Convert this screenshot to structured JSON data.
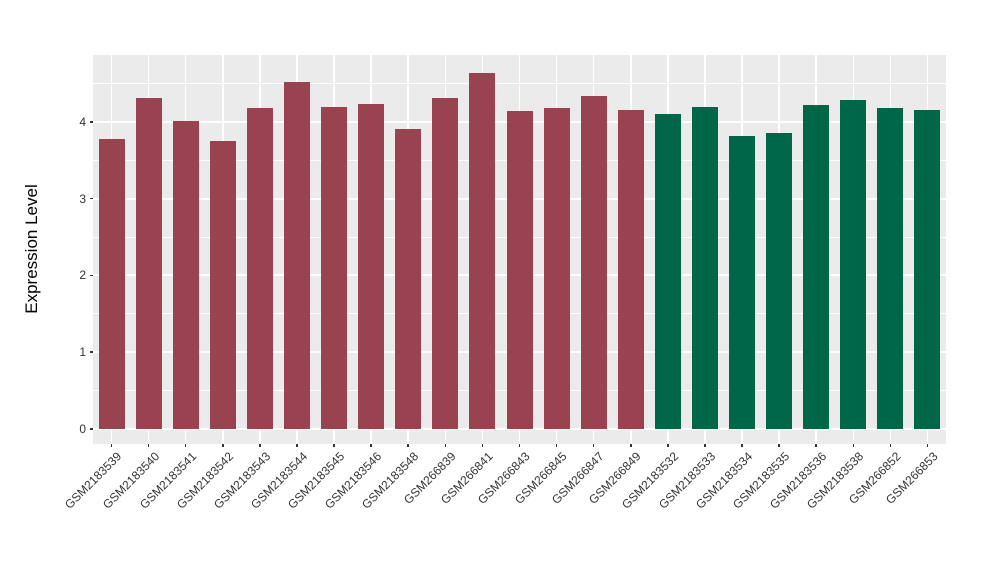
{
  "chart_data": {
    "type": "bar",
    "title": "",
    "xlabel": "",
    "ylabel": "Expression Level",
    "categories": [
      "GSM2183539",
      "GSM2183540",
      "GSM2183541",
      "GSM2183542",
      "GSM2183543",
      "GSM2183544",
      "GSM2183545",
      "GSM2183546",
      "GSM2183548",
      "GSM266839",
      "GSM266841",
      "GSM266843",
      "GSM266845",
      "GSM266847",
      "GSM266849",
      "GSM2183532",
      "GSM2183533",
      "GSM2183534",
      "GSM2183535",
      "GSM2183536",
      "GSM2183538",
      "GSM266852",
      "GSM266853"
    ],
    "values": [
      3.78,
      4.31,
      4.01,
      3.75,
      4.18,
      4.52,
      4.19,
      4.23,
      3.9,
      4.31,
      4.63,
      4.14,
      4.18,
      4.33,
      4.16,
      4.1,
      4.19,
      3.82,
      3.85,
      4.22,
      4.28,
      4.18,
      4.16
    ],
    "bar_colors": [
      "#9A4350",
      "#9A4350",
      "#9A4350",
      "#9A4350",
      "#9A4350",
      "#9A4350",
      "#9A4350",
      "#9A4350",
      "#9A4350",
      "#9A4350",
      "#9A4350",
      "#9A4350",
      "#9A4350",
      "#9A4350",
      "#9A4350",
      "#006648",
      "#006648",
      "#006648",
      "#006648",
      "#006648",
      "#006648",
      "#006648",
      "#006648"
    ],
    "y_ticks": [
      0,
      1,
      2,
      3,
      4
    ],
    "y_minor_ticks": [
      0.5,
      1.5,
      2.5,
      3.5,
      4.5
    ],
    "ylim": [
      0,
      4.87
    ],
    "grid": true,
    "legend": "none",
    "colors": {
      "bar_group_1": "#9A4350",
      "bar_group_2": "#006648",
      "panel_background": "#EBEBEB",
      "gridline": "#FFFFFF",
      "tick_label": "#333333",
      "axis_title": "#000000"
    }
  }
}
